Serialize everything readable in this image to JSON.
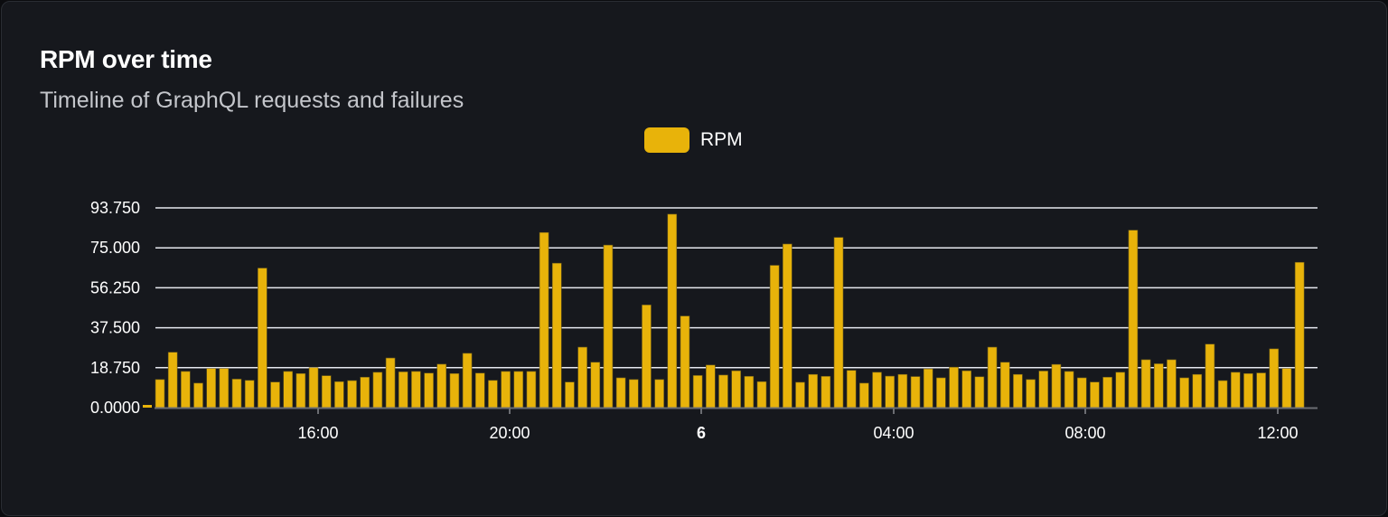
{
  "card": {
    "title": "RPM over time",
    "subtitle": "Timeline of GraphQL requests and failures"
  },
  "chart_data": {
    "type": "bar",
    "title": "RPM over time",
    "subtitle": "Timeline of GraphQL requests and failures",
    "legend": {
      "position": "top",
      "entries": [
        "RPM"
      ]
    },
    "series": [
      {
        "name": "RPM",
        "color": "#e8b30a",
        "values": [
          13.2,
          26,
          17,
          11.5,
          18.4,
          18.4,
          13.4,
          12.8,
          65.5,
          12,
          17,
          16,
          18.8,
          15,
          12.2,
          12.7,
          14.3,
          16.6,
          23.3,
          16.8,
          17,
          16.2,
          20.4,
          16,
          25.5,
          16.2,
          12.8,
          17,
          17,
          17,
          82.2,
          67.8,
          12,
          28.4,
          21.3,
          76.3,
          14,
          13.2,
          48.2,
          13.2,
          90.8,
          43,
          15.1,
          20,
          15.3,
          17.3,
          14.7,
          12.2,
          66.8,
          76.8,
          11.9,
          15.6,
          14.7,
          79.9,
          17.5,
          11.5,
          16.6,
          14.8,
          15.6,
          14.6,
          18.2,
          14,
          19,
          17.3,
          14.5,
          28.4,
          21.3,
          15.6,
          13.2,
          17.2,
          20.3,
          17,
          14,
          12,
          14.3,
          16.6,
          83.3,
          22.5,
          20.6,
          22.5,
          14,
          15.6,
          29.8,
          12.7,
          16.6,
          16,
          16.3,
          27.6,
          18.4,
          68.2
        ]
      }
    ],
    "y_ticks": [
      "0.0000",
      "18.750",
      "37.500",
      "56.250",
      "75.000",
      "93.750"
    ],
    "ylim": [
      0,
      93.75
    ],
    "x_ticks": [
      {
        "label": "16:00",
        "bold": false
      },
      {
        "label": "20:00",
        "bold": false
      },
      {
        "label": "6",
        "bold": true
      },
      {
        "label": "04:00",
        "bold": false
      },
      {
        "label": "08:00",
        "bold": false
      },
      {
        "label": "12:00",
        "bold": false
      }
    ],
    "grid": true,
    "colors": {
      "bar": "#e8b30a",
      "grid": "#e6e8ef",
      "axis": "#6b6d72"
    }
  }
}
